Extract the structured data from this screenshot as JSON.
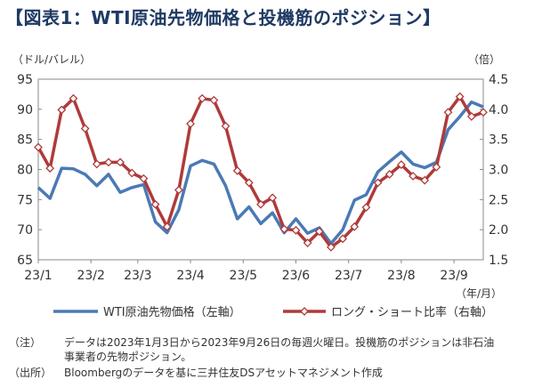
{
  "title": "【図表1：WTI原油先物価格と投機筋のポジション】",
  "chart_data": {
    "type": "line",
    "title": "【図表1：WTI原油先物価格と投機筋のポジション】",
    "left_axis_unit": "（ドル/バレル）",
    "right_axis_unit": "（倍）",
    "x_unit": "（年/月）",
    "ylim_left": [
      65,
      95
    ],
    "ylim_right": [
      1.5,
      4.5
    ],
    "yticks_left": [
      "65",
      "70",
      "75",
      "80",
      "85",
      "90",
      "95"
    ],
    "yticks_right": [
      "1.5",
      "2.0",
      "2.5",
      "3.0",
      "3.5",
      "4.0",
      "4.5"
    ],
    "x_tick_labels": [
      "23/1",
      "23/2",
      "23/3",
      "23/4",
      "23/5",
      "23/6",
      "23/7",
      "23/8",
      "23/9"
    ],
    "x_tick_weeks": [
      0,
      4.5,
      8.5,
      13,
      17.5,
      22,
      26.5,
      31,
      35.5
    ],
    "series": [
      {
        "name": "WTI原油先物価格（左軸）",
        "axis": "left",
        "color": "#4a7ab5",
        "values": [
          77.0,
          75.2,
          80.2,
          80.1,
          79.2,
          77.3,
          79.2,
          76.2,
          77.0,
          77.5,
          71.3,
          69.5,
          73.3,
          80.6,
          81.5,
          80.9,
          77.3,
          71.8,
          73.8,
          71.0,
          72.8,
          69.5,
          71.8,
          69.4,
          70.3,
          67.7,
          70.0,
          74.9,
          75.8,
          79.6,
          81.3,
          82.9,
          80.9,
          80.3,
          81.2,
          86.6,
          88.8,
          91.2,
          90.4
        ]
      },
      {
        "name": "ロング・ショート比率（右軸）",
        "axis": "right",
        "color": "#b03a3a",
        "values": [
          3.37,
          3.02,
          3.99,
          4.18,
          3.68,
          3.09,
          3.12,
          3.12,
          2.94,
          2.85,
          2.42,
          2.05,
          2.66,
          3.76,
          4.18,
          4.15,
          3.72,
          2.98,
          2.78,
          2.42,
          2.53,
          2.01,
          1.99,
          1.78,
          1.97,
          1.71,
          1.85,
          2.05,
          2.37,
          2.78,
          2.92,
          3.08,
          2.89,
          2.82,
          3.04,
          3.95,
          4.21,
          3.88,
          3.95
        ]
      }
    ]
  },
  "notes": [
    {
      "label": "（注）",
      "lines": [
        "データは2023年1月3日から2023年9月26日の毎週火曜日。投機筋のポジションは非石油",
        "事業者の先物ポジション。"
      ]
    },
    {
      "label": "（出所）",
      "lines": [
        "Bloombergのデータを基に三井住友DSアセットマネジメント作成"
      ]
    }
  ]
}
